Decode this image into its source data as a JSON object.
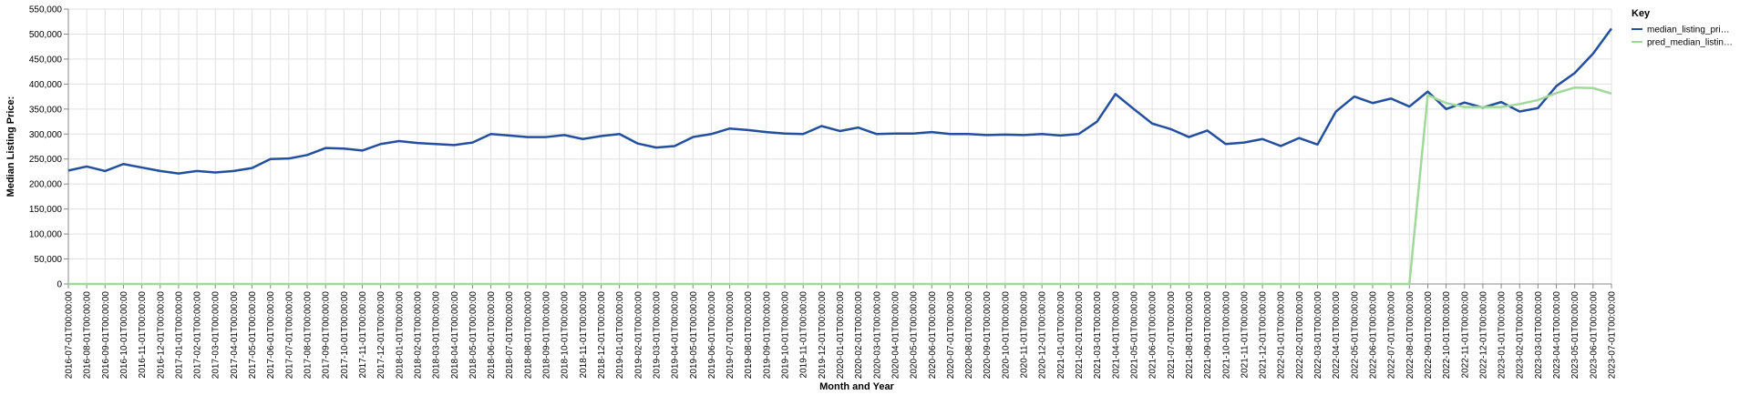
{
  "chart_data": {
    "type": "line",
    "x_label": "Month and Year",
    "y_label": "Median Listing Price:",
    "legend_title": "Key",
    "legend": "right",
    "grid": true,
    "categories": [
      "2016-07-01T00:00:00",
      "2016-08-01T00:00:00",
      "2016-09-01T00:00:00",
      "2016-10-01T00:00:00",
      "2016-11-01T00:00:00",
      "2016-12-01T00:00:00",
      "2017-01-01T00:00:00",
      "2017-02-01T00:00:00",
      "2017-03-01T00:00:00",
      "2017-04-01T00:00:00",
      "2017-05-01T00:00:00",
      "2017-06-01T00:00:00",
      "2017-07-01T00:00:00",
      "2017-08-01T00:00:00",
      "2017-09-01T00:00:00",
      "2017-10-01T00:00:00",
      "2017-11-01T00:00:00",
      "2017-12-01T00:00:00",
      "2018-01-01T00:00:00",
      "2018-02-01T00:00:00",
      "2018-03-01T00:00:00",
      "2018-04-01T00:00:00",
      "2018-05-01T00:00:00",
      "2018-06-01T00:00:00",
      "2018-07-01T00:00:00",
      "2018-08-01T00:00:00",
      "2018-09-01T00:00:00",
      "2018-10-01T00:00:00",
      "2018-11-01T00:00:00",
      "2018-12-01T00:00:00",
      "2019-01-01T00:00:00",
      "2019-02-01T00:00:00",
      "2019-03-01T00:00:00",
      "2019-04-01T00:00:00",
      "2019-05-01T00:00:00",
      "2019-06-01T00:00:00",
      "2019-07-01T00:00:00",
      "2019-08-01T00:00:00",
      "2019-09-01T00:00:00",
      "2019-10-01T00:00:00",
      "2019-11-01T00:00:00",
      "2019-12-01T00:00:00",
      "2020-01-01T00:00:00",
      "2020-02-01T00:00:00",
      "2020-03-01T00:00:00",
      "2020-04-01T00:00:00",
      "2020-05-01T00:00:00",
      "2020-06-01T00:00:00",
      "2020-07-01T00:00:00",
      "2020-08-01T00:00:00",
      "2020-09-01T00:00:00",
      "2020-10-01T00:00:00",
      "2020-11-01T00:00:00",
      "2020-12-01T00:00:00",
      "2021-01-01T00:00:00",
      "2021-02-01T00:00:00",
      "2021-03-01T00:00:00",
      "2021-04-01T00:00:00",
      "2021-05-01T00:00:00",
      "2021-06-01T00:00:00",
      "2021-07-01T00:00:00",
      "2021-08-01T00:00:00",
      "2021-09-01T00:00:00",
      "2021-10-01T00:00:00",
      "2021-11-01T00:00:00",
      "2021-12-01T00:00:00",
      "2022-01-01T00:00:00",
      "2022-02-01T00:00:00",
      "2022-03-01T00:00:00",
      "2022-04-01T00:00:00",
      "2022-05-01T00:00:00",
      "2022-06-01T00:00:00",
      "2022-07-01T00:00:00",
      "2022-08-01T00:00:00",
      "2022-09-01T00:00:00",
      "2022-10-01T00:00:00",
      "2022-11-01T00:00:00",
      "2022-12-01T00:00:00",
      "2023-01-01T00:00:00",
      "2023-02-01T00:00:00",
      "2023-03-01T00:00:00",
      "2023-04-01T00:00:00",
      "2023-05-01T00:00:00",
      "2023-06-01T00:00:00",
      "2023-07-01T00:00:00"
    ],
    "series": [
      {
        "name": "median_listing_pri…",
        "color": "#23509e",
        "values": [
          227000,
          235000,
          226000,
          240000,
          233000,
          226000,
          221000,
          226000,
          223000,
          226000,
          232000,
          250000,
          251000,
          258000,
          272000,
          271000,
          267000,
          280000,
          286000,
          282000,
          280000,
          278000,
          283000,
          300000,
          297000,
          294000,
          294000,
          298000,
          290000,
          296000,
          300000,
          281000,
          273000,
          276000,
          294000,
          300000,
          311000,
          308000,
          304000,
          301000,
          300000,
          316000,
          306000,
          313000,
          300000,
          301000,
          301000,
          304000,
          300000,
          300000,
          298000,
          299000,
          298000,
          300000,
          297000,
          300000,
          325000,
          380000,
          350000,
          321000,
          310000,
          294000,
          307000,
          280000,
          283000,
          290000,
          276000,
          292000,
          279000,
          345000,
          375000,
          362000,
          371000,
          355000,
          385000,
          350000,
          363000,
          353000,
          364000,
          345000,
          352000,
          396000,
          422000,
          461000,
          511000
        ]
      },
      {
        "name": "pred_median_listin…",
        "color": "#a1d99b",
        "values": [
          0,
          0,
          0,
          0,
          0,
          0,
          0,
          0,
          0,
          0,
          0,
          0,
          0,
          0,
          0,
          0,
          0,
          0,
          0,
          0,
          0,
          0,
          0,
          0,
          0,
          0,
          0,
          0,
          0,
          0,
          0,
          0,
          0,
          0,
          0,
          0,
          0,
          0,
          0,
          0,
          0,
          0,
          0,
          0,
          0,
          0,
          0,
          0,
          0,
          0,
          0,
          0,
          0,
          0,
          0,
          0,
          0,
          0,
          0,
          0,
          0,
          0,
          0,
          0,
          0,
          0,
          0,
          0,
          0,
          0,
          0,
          0,
          0,
          0,
          378000,
          362000,
          354000,
          354000,
          354000,
          360000,
          368000,
          382000,
          393000,
          392000,
          381000
        ]
      }
    ],
    "ylim": [
      0,
      550000
    ],
    "yticks": [
      0,
      {
        "value": 50000,
        "label": "50,000"
      },
      {
        "value": 100000,
        "label": "100,000"
      },
      {
        "value": 150000,
        "label": "150,000"
      },
      {
        "value": 200000,
        "label": "200,000"
      },
      {
        "value": 250000,
        "label": "250,000"
      },
      {
        "value": 300000,
        "label": "300,000"
      },
      {
        "value": 350000,
        "label": "350,000"
      },
      {
        "value": 400000,
        "label": "400,000"
      },
      {
        "value": 450000,
        "label": "450,000"
      },
      {
        "value": 500000,
        "label": "500,000"
      },
      {
        "value": 550000,
        "label": "550,000"
      }
    ]
  }
}
